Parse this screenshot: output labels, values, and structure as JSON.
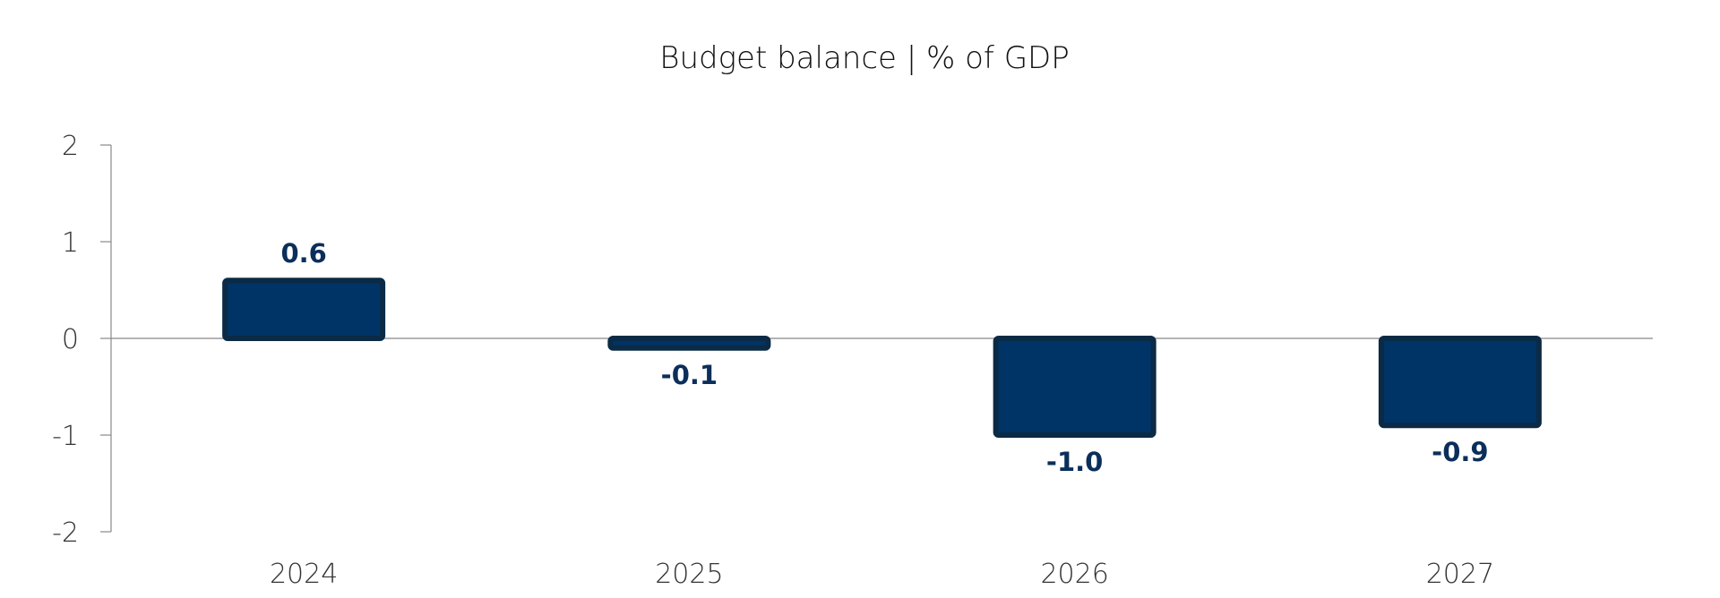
{
  "chart_data": {
    "type": "bar",
    "title": "Budget balance | % of GDP",
    "categories": [
      "2024",
      "2025",
      "2026",
      "2027"
    ],
    "values": [
      0.6,
      -0.1,
      -1.0,
      -0.9
    ],
    "data_labels": [
      "0.6",
      "-0.1",
      "-1.0",
      "-0.9"
    ],
    "ylim": [
      -2,
      2
    ],
    "yticks": [
      2,
      1,
      0,
      -1,
      -2
    ],
    "ytick_labels": [
      "2",
      "1",
      "0",
      "-1",
      "-2"
    ],
    "grid": false,
    "legend": "none",
    "colors": {
      "bar_fill": "#003366",
      "bar_edge": "#0b2a45",
      "label": "#0b2f5a",
      "axis": "#888888"
    }
  }
}
